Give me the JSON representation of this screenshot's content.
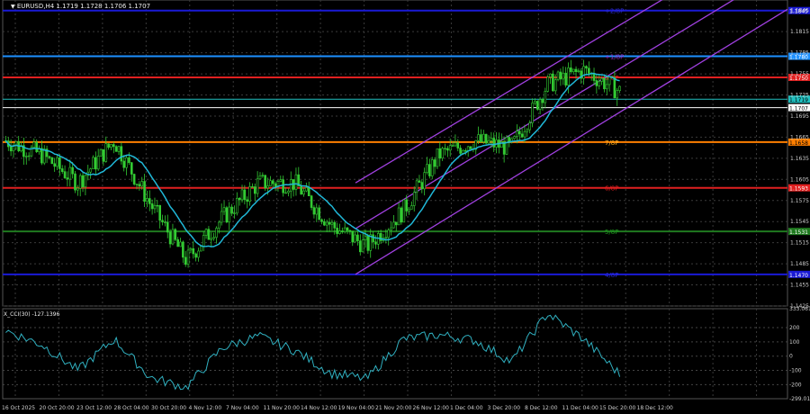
{
  "header": {
    "symbol_line": "EURUSD,H4  1.1719  1.1728  1.1706  1.1707"
  },
  "indicator": {
    "title": "X_CCI(30) -127.1396",
    "axis": [
      "333.061",
      "200",
      "100",
      "0",
      "-100",
      "-200",
      "-299.013"
    ]
  },
  "price_axis": [
    "1.1845",
    "1.1815",
    "1.1785",
    "1.1755",
    "1.1725",
    "1.1695",
    "1.1665",
    "1.1635",
    "1.1605",
    "1.1575",
    "1.1545",
    "1.1515",
    "1.1485",
    "1.1455",
    "1.1425"
  ],
  "time_axis": [
    "16 Oct 2025",
    "20 Oct 20:00",
    "23 Oct 12:00",
    "28 Oct 04:00",
    "30 Oct 20:00",
    "4 Nov 12:00",
    "7 Nov 04:00",
    "11 Nov 20:00",
    "14 Nov 12:00",
    "19 Nov 04:00",
    "21 Nov 20:00",
    "26 Nov 12:00",
    "1 Dec 04:00",
    "3 Dec 20:00",
    "8 Dec 12:00",
    "11 Dec 04:00",
    "15 Dec 20:00",
    "18 Dec 12:00"
  ],
  "levels": [
    {
      "label": "1.1845",
      "price": 1.1845,
      "color": "#1a1ad6",
      "tag": "+2/8P",
      "tag_color": "#2b2bd8"
    },
    {
      "label": "1.1780",
      "price": 1.178,
      "color": "#1e90ff",
      "tag": "+1/8P",
      "tag_color": "#9b30d0"
    },
    {
      "label": "1.1750",
      "price": 1.175,
      "color": "#e02020",
      "tag": "8/8P",
      "tag_color": "#e02020"
    },
    {
      "label": "1.1719",
      "price": 1.1719,
      "color": "#20c0c0",
      "tag": "",
      "tag_color": "#20c0c0"
    },
    {
      "label": "1.1707",
      "price": 1.1707,
      "color": "#ffffff",
      "tag": "",
      "tag_color": "#ffffff"
    },
    {
      "label": "1.1658",
      "price": 1.1658,
      "color": "#ff7f00",
      "tag": "7/8P",
      "tag_color": "#ffb020"
    },
    {
      "label": "1.1593",
      "price": 1.1593,
      "color": "#e02020",
      "tag": "6/8P",
      "tag_color": "#e02020"
    },
    {
      "label": "1.1531",
      "price": 1.1531,
      "color": "#1f7a1f",
      "tag": "5/8P",
      "tag_color": "#1f9a1f"
    },
    {
      "label": "1.1470",
      "price": 1.147,
      "color": "#1a1ad6",
      "tag": "4/8P",
      "tag_color": "#2b2bd8"
    }
  ],
  "colors": {
    "background": "#000000",
    "candles": "#33cc33",
    "ma": "#20b8d8",
    "channel": "#a040e0",
    "cci": "#30b0c0",
    "support_line": "#1e90ff"
  },
  "chart_data": {
    "type": "line",
    "title": "EURUSD,H4",
    "x": [
      "16 Oct",
      "20 Oct",
      "23 Oct",
      "28 Oct",
      "30 Oct",
      "4 Nov",
      "7 Nov",
      "11 Nov",
      "14 Nov",
      "19 Nov",
      "21 Nov",
      "26 Nov",
      "1 Dec",
      "3 Dec",
      "8 Dec",
      "11 Dec",
      "15 Dec",
      "18 Dec"
    ],
    "series": [
      {
        "name": "EURUSD",
        "values": [
          1.166,
          1.164,
          1.16,
          1.166,
          1.157,
          1.149,
          1.155,
          1.16,
          1.16,
          1.154,
          1.151,
          1.156,
          1.164,
          1.166,
          1.165,
          1.174,
          1.176,
          1.173
        ]
      },
      {
        "name": "X_CCI(30)",
        "values": [
          180,
          80,
          -100,
          120,
          -150,
          -220,
          60,
          140,
          40,
          -120,
          -160,
          120,
          150,
          110,
          -40,
          300,
          120,
          -127
        ]
      }
    ],
    "ylim": [
      1.1425,
      1.186
    ]
  }
}
